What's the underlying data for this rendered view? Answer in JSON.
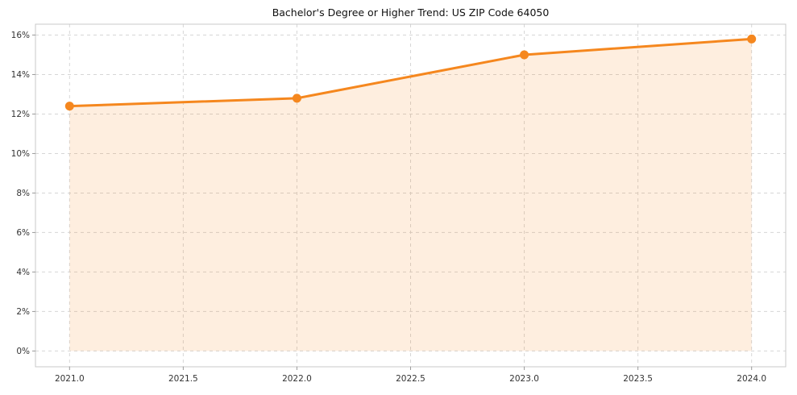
{
  "chart_data": {
    "type": "line",
    "title": "Bachelor's Degree or Higher Trend: US ZIP Code 64050",
    "x": [
      2021,
      2022,
      2023,
      2024
    ],
    "series": [
      {
        "name": "Bachelor's Degree or Higher %",
        "values": [
          12.4,
          12.8,
          15.0,
          15.8
        ]
      }
    ],
    "xlabel": "",
    "ylabel": "",
    "xlim": [
      2020.85,
      2024.15
    ],
    "ylim": [
      -0.8,
      16.55
    ],
    "x_ticks": [
      2021.0,
      2021.5,
      2022.0,
      2022.5,
      2023.0,
      2023.5,
      2024.0
    ],
    "x_tick_labels": [
      "2021.0",
      "2021.5",
      "2022.0",
      "2022.5",
      "2023.0",
      "2023.5",
      "2024.0"
    ],
    "y_ticks": [
      0,
      2,
      4,
      6,
      8,
      10,
      12,
      14,
      16
    ],
    "y_tick_labels": [
      "0%",
      "2%",
      "4%",
      "6%",
      "8%",
      "10%",
      "12%",
      "14%",
      "16%"
    ],
    "grid": true,
    "legend": "none",
    "area_fill_to": 0,
    "marker": "circle",
    "colors": {
      "line": "#f5871e",
      "marker": "#f5871e",
      "area_fill": "rgba(245, 135, 30, 0.14)",
      "grid": "#d6d6d6",
      "plot_border": "#c9c9c9",
      "tick_mark": "#9a9a9a",
      "tick_text": "#333333",
      "title_text": "#111111",
      "background": "#ffffff"
    }
  }
}
